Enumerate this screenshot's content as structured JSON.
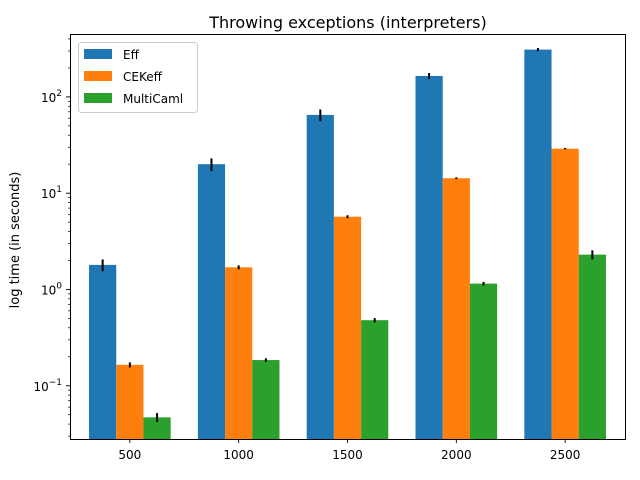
{
  "chart_data": {
    "type": "bar",
    "title": "Throwing exceptions (interpreters)",
    "xlabel": "",
    "ylabel": "log time (in seconds)",
    "yscale": "log",
    "ylim": [
      0.028,
      450
    ],
    "yticks": [
      {
        "value": 0.1,
        "base": "10",
        "exp": "−1"
      },
      {
        "value": 1,
        "base": "10",
        "exp": "0"
      },
      {
        "value": 10,
        "base": "10",
        "exp": "1"
      },
      {
        "value": 100,
        "base": "10",
        "exp": "2"
      }
    ],
    "categories": [
      "500",
      "1000",
      "1500",
      "2000",
      "2500"
    ],
    "series": [
      {
        "name": "Eff",
        "color": "#1f77b4",
        "values": [
          1.8,
          20,
          65,
          165,
          310
        ],
        "errors": [
          0.25,
          3.0,
          9.0,
          12.0,
          12.0
        ]
      },
      {
        "name": "CEKeff",
        "color": "#ff7f0e",
        "values": [
          0.165,
          1.7,
          5.7,
          14.3,
          29
        ],
        "errors": [
          0.01,
          0.08,
          0.2,
          0.3,
          0.5
        ]
      },
      {
        "name": "MultiCaml",
        "color": "#2ca02c",
        "values": [
          0.047,
          0.185,
          0.48,
          1.15,
          2.3
        ],
        "errors": [
          0.005,
          0.008,
          0.025,
          0.05,
          0.25
        ]
      }
    ],
    "grid": false,
    "legend": "top-left"
  }
}
